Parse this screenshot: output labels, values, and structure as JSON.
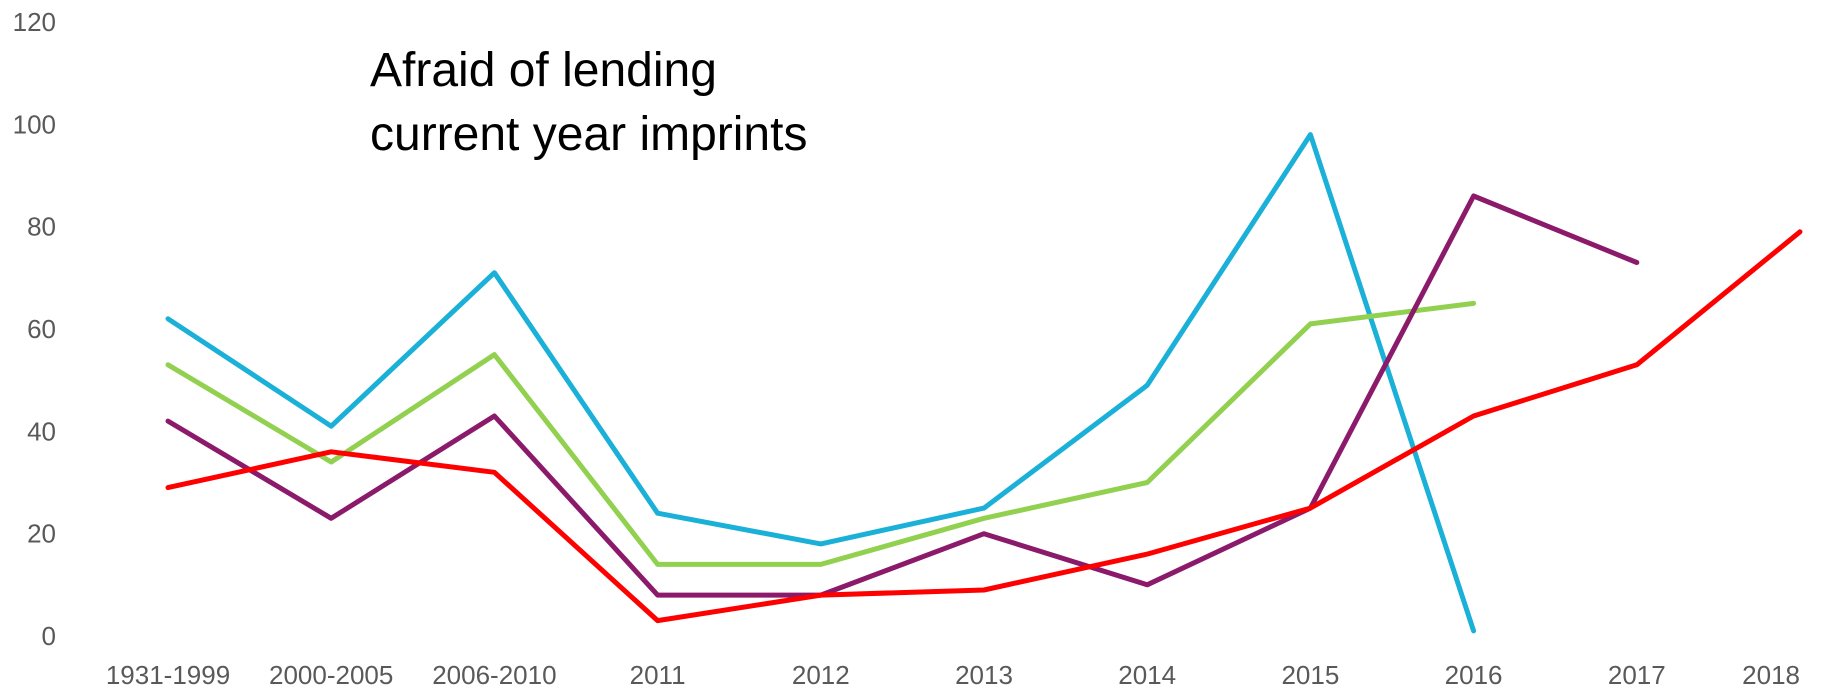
{
  "chart_data": {
    "type": "line",
    "title_lines": [
      "Afraid of lending",
      "current year imprints"
    ],
    "categories": [
      "1931-1999",
      "2000-2005",
      "2006-2010",
      "2011",
      "2012",
      "2013",
      "2014",
      "2015",
      "2016",
      "2017",
      "2018"
    ],
    "ylim": [
      0,
      120
    ],
    "yticks": [
      0,
      20,
      40,
      60,
      80,
      100,
      120
    ],
    "grid": false,
    "series": [
      {
        "color": "#1ab0d8",
        "values": [
          62,
          41,
          71,
          24,
          18,
          25,
          49,
          98,
          1,
          null,
          null
        ]
      },
      {
        "color": "#92d050",
        "values": [
          53,
          34,
          55,
          14,
          14,
          23,
          30,
          61,
          65,
          null,
          null
        ]
      },
      {
        "color": "#8b1a6b",
        "values": [
          42,
          23,
          43,
          8,
          8,
          20,
          10,
          25,
          86,
          73,
          null
        ]
      },
      {
        "color": "#ff0000",
        "values": [
          29,
          36,
          32,
          3,
          8,
          9,
          16,
          25,
          43,
          53,
          79
        ]
      }
    ]
  }
}
